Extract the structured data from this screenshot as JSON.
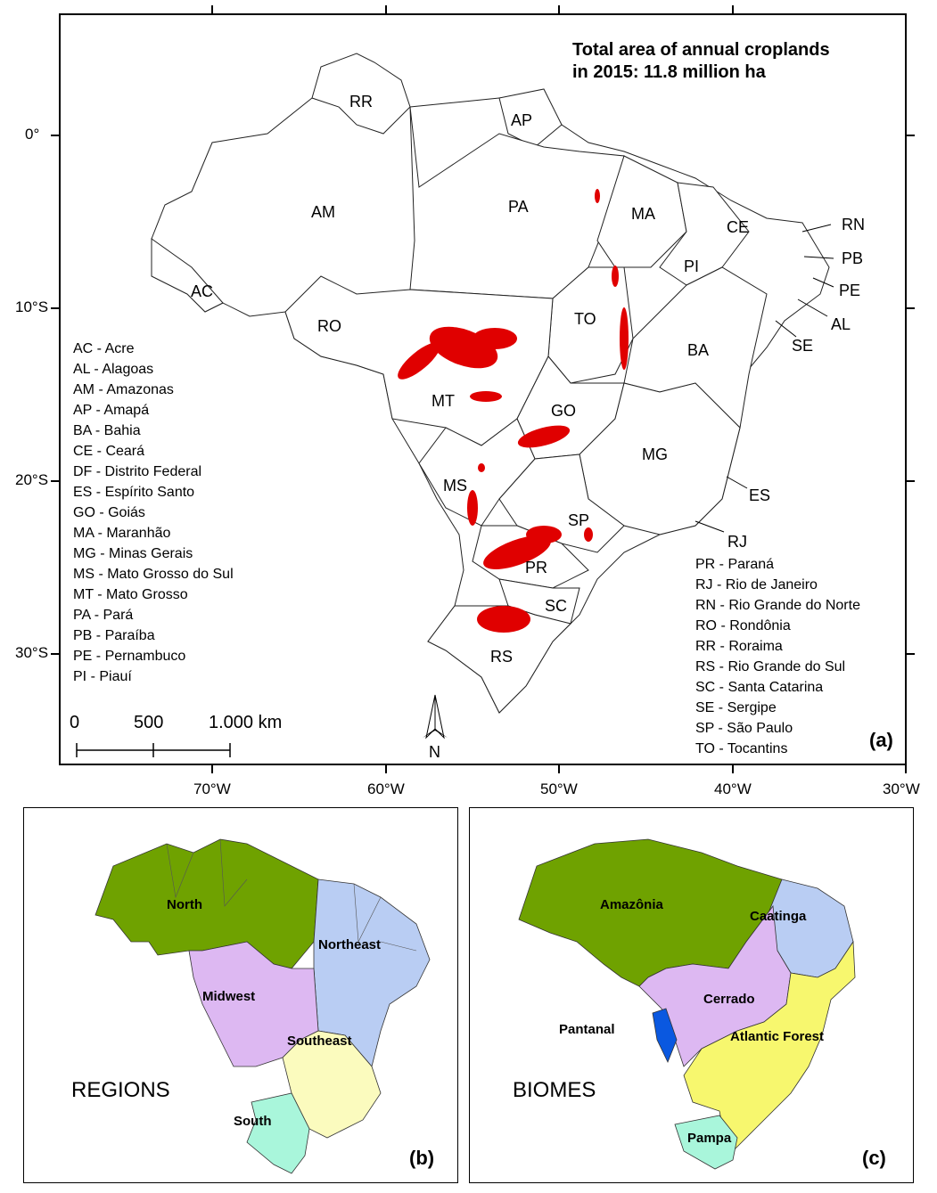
{
  "main_map": {
    "title_line1": "Total area of annual croplands",
    "title_line2": "in 2015: 11.8 million ha",
    "panel_label": "(a)",
    "north_label": "N",
    "lat_ticks": [
      "0°",
      "10°S",
      "20°S",
      "30°S"
    ],
    "lon_ticks": [
      "70°W",
      "60°W",
      "50°W",
      "40°W",
      "30°W"
    ],
    "scale_bar": {
      "labels": [
        "0",
        "500",
        "1.000 km"
      ]
    },
    "cropland_color": "#e00000",
    "state_labels": [
      "RR",
      "AP",
      "AM",
      "PA",
      "MA",
      "CE",
      "RN",
      "PB",
      "PE",
      "AL",
      "SE",
      "PI",
      "AC",
      "RO",
      "TO",
      "BA",
      "MT",
      "GO",
      "MG",
      "MS",
      "ES",
      "SP",
      "RJ",
      "PR",
      "SC",
      "RS"
    ],
    "legend_left": [
      "AC - Acre",
      "AL - Alagoas",
      "AM - Amazonas",
      "AP - Amapá",
      "BA - Bahia",
      "CE - Ceará",
      "DF - Distrito Federal",
      "ES - Espírito Santo",
      "GO - Goiás",
      "MA - Maranhão",
      "MG - Minas Gerais",
      "MS - Mato Grosso do Sul",
      "MT - Mato Grosso",
      "PA - Pará",
      "PB - Paraíba",
      "PE - Pernambuco",
      "PI - Piauí"
    ],
    "legend_right": [
      "PR - Paraná",
      "RJ - Rio de Janeiro",
      "RN - Rio Grande do Norte",
      "RO - Rondônia",
      "RR - Roraima",
      "RS - Rio Grande do Sul",
      "SC - Santa Catarina",
      "SE - Sergipe",
      "SP - São Paulo",
      "TO - Tocantins"
    ]
  },
  "regions_map": {
    "title": "REGIONS",
    "panel_label": "(b)",
    "regions": [
      {
        "name": "North",
        "color": "#6fa200"
      },
      {
        "name": "Northeast",
        "color": "#b9cdf3"
      },
      {
        "name": "Midwest",
        "color": "#ddb8f2"
      },
      {
        "name": "Southeast",
        "color": "#fbfbbe"
      },
      {
        "name": "South",
        "color": "#a9f6db"
      }
    ]
  },
  "biomes_map": {
    "title": "BIOMES",
    "panel_label": "(c)",
    "biomes": [
      {
        "name": "Amazônia",
        "color": "#6fa200"
      },
      {
        "name": "Caatinga",
        "color": "#b9cdf3"
      },
      {
        "name": "Cerrado",
        "color": "#ddb8f2"
      },
      {
        "name": "Pantanal",
        "color": "#0a58e0"
      },
      {
        "name": "Atlantic Forest",
        "color": "#f7f76e"
      },
      {
        "name": "Pampa",
        "color": "#a9f6db"
      }
    ]
  }
}
